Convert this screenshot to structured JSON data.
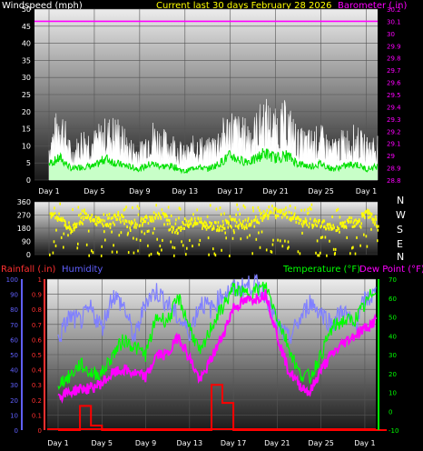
{
  "header": {
    "left_title": "Windspeed (mph)",
    "center_title": "Current last 30 days February 28 2026",
    "right_title": "Barometer (.in)"
  },
  "colors": {
    "background": "#000000",
    "wind": "#ffffff",
    "gust_fill": "#c8ffc8",
    "avg_wind": "#00e000",
    "barometer": "#ff00ff",
    "direction": "#ffff00",
    "rainfall": "#ff0000",
    "humidity": "#8080ff",
    "temperature": "#00ff00",
    "dewpoint": "#ff00ff",
    "rain_axis_red": "#ff3030",
    "humidity_axis_blue": "#6060ff"
  },
  "compass": [
    "N",
    "W",
    "S",
    "E",
    "N"
  ],
  "bottom_titles": {
    "rainfall": "Rainfall (.in)",
    "humidity": "Humidity",
    "temperature": "Temperature (°F)",
    "dewpoint": "Dew Point (°F)"
  },
  "chart_data": [
    {
      "type": "area",
      "id": "wind",
      "ylabel": "Windspeed (mph)",
      "ylim": [
        0,
        50
      ],
      "yticks": [
        "0",
        "5",
        "10",
        "15",
        "20",
        "25",
        "30",
        "35",
        "40",
        "45",
        "50"
      ],
      "y2label": "Barometer (.in)",
      "y2lim": [
        28.8,
        30.2
      ],
      "y2ticks": [
        "28.8",
        "28.9",
        "29",
        "29.1",
        "29.2",
        "29.3",
        "29.4",
        "29.5",
        "29.6",
        "29.7",
        "29.8",
        "29.9",
        "30",
        "30.1",
        "30.2"
      ],
      "xticks": [
        "Day 1",
        "Day 5",
        "Day 9",
        "Day 13",
        "Day 17",
        "Day 21",
        "Day 25",
        "Day 1"
      ],
      "x_days": [
        0,
        4,
        8,
        12,
        16,
        20,
        24,
        28
      ],
      "barometer_value": 30.1,
      "grid": true,
      "series_days": [
        0,
        1,
        2,
        3,
        4,
        5,
        6,
        7,
        8,
        9,
        10,
        11,
        12,
        13,
        14,
        15,
        16,
        17,
        18,
        19,
        20,
        21,
        22,
        23,
        24,
        25,
        26,
        27,
        28,
        29
      ],
      "gust_daily": [
        12,
        22,
        9,
        15,
        14,
        17,
        18,
        12,
        10,
        17,
        14,
        13,
        9,
        13,
        11,
        15,
        20,
        17,
        17,
        23,
        19,
        22,
        14,
        14,
        15,
        11,
        14,
        15,
        12,
        13
      ],
      "avg_wind_daily": [
        6,
        8,
        4,
        5,
        5,
        8,
        6,
        5,
        4,
        6,
        5,
        5,
        3,
        5,
        4,
        6,
        9,
        7,
        7,
        10,
        8,
        9,
        6,
        5,
        6,
        4,
        5,
        6,
        4,
        5
      ]
    },
    {
      "type": "scatter",
      "id": "direction",
      "ylim": [
        0,
        360
      ],
      "yticks": [
        "0",
        "90",
        "180",
        "270",
        "360"
      ],
      "direction_daily": [
        300,
        250,
        180,
        300,
        240,
        220,
        280,
        200,
        230,
        260,
        290,
        180,
        220,
        240,
        200,
        200,
        230,
        210,
        230,
        280,
        300,
        280,
        240,
        220,
        220,
        180,
        210,
        230,
        300,
        200
      ]
    },
    {
      "type": "line",
      "id": "climate",
      "ylim_rain": [
        0,
        1
      ],
      "ytick_rain": [
        "0",
        "0.1",
        "0.2",
        "0.3",
        "0.4",
        "0.5",
        "0.6",
        "0.7",
        "0.8",
        "0.9",
        "1"
      ],
      "ylim_humidity": [
        0,
        100
      ],
      "ytick_humidity": [
        "0",
        "10",
        "20",
        "30",
        "40",
        "50",
        "60",
        "70",
        "80",
        "90",
        "100"
      ],
      "ylim_temp": [
        -10,
        70
      ],
      "ytick_temp": [
        "-10",
        "0",
        "10",
        "20",
        "30",
        "40",
        "50",
        "60",
        "70"
      ],
      "xticks": [
        "Day 1",
        "Day 5",
        "Day 9",
        "Day 13",
        "Day 17",
        "Day 21",
        "Day 25",
        "Day 1"
      ],
      "x_days": [
        0,
        4,
        8,
        12,
        16,
        20,
        24,
        28
      ],
      "grid": true,
      "series_days": [
        0,
        1,
        2,
        3,
        4,
        5,
        6,
        7,
        8,
        9,
        10,
        11,
        12,
        13,
        14,
        15,
        16,
        17,
        18,
        19,
        20,
        21,
        22,
        23,
        24,
        25,
        26,
        27,
        28,
        29
      ],
      "humidity_daily": [
        60,
        75,
        72,
        80,
        68,
        90,
        82,
        60,
        86,
        92,
        84,
        74,
        65,
        85,
        80,
        90,
        93,
        95,
        97,
        90,
        70,
        60,
        72,
        85,
        78,
        70,
        80,
        68,
        86,
        90
      ],
      "temperature_daily": [
        15,
        18,
        25,
        20,
        20,
        30,
        38,
        34,
        30,
        50,
        48,
        60,
        45,
        30,
        45,
        55,
        65,
        62,
        64,
        66,
        50,
        35,
        20,
        18,
        30,
        44,
        48,
        48,
        56,
        66
      ],
      "dewpoint_daily": [
        8,
        10,
        12,
        12,
        15,
        20,
        22,
        20,
        18,
        30,
        30,
        40,
        28,
        16,
        28,
        40,
        55,
        58,
        60,
        62,
        40,
        22,
        14,
        10,
        22,
        30,
        36,
        40,
        44,
        48
      ],
      "rain_daily": [
        0,
        0,
        0.16,
        0.03,
        0,
        0,
        0,
        0,
        0,
        0,
        0,
        0,
        0,
        0,
        0.3,
        0.18,
        0,
        0,
        0,
        0,
        0,
        0,
        0,
        0,
        0,
        0,
        0,
        0,
        0,
        0
      ]
    }
  ]
}
